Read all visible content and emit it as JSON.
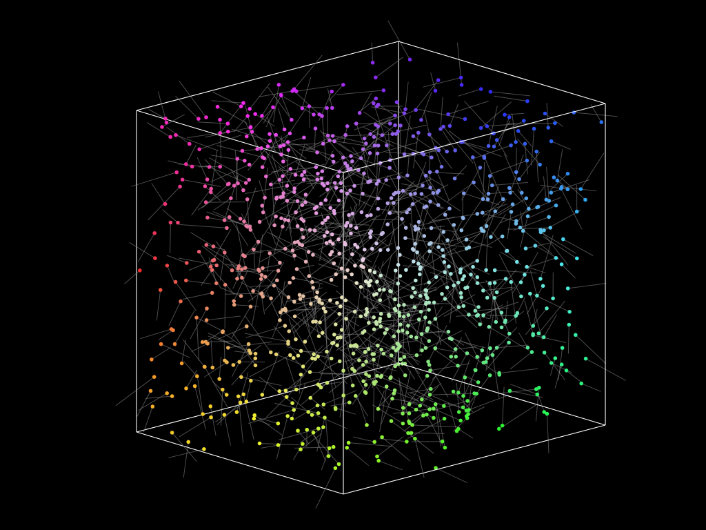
{
  "scene": {
    "background_color": "#000000",
    "cube_edge_color": "#ffffff",
    "stick_color": "#8a8a8a",
    "point_count": 1000,
    "color_legend": [
      {
        "region": "top-left",
        "color": "#b040e0"
      },
      {
        "region": "top",
        "color": "#3a3ad8"
      },
      {
        "region": "top-right",
        "color": "#40c0e0"
      },
      {
        "region": "left",
        "color": "#e03070"
      },
      {
        "region": "center",
        "color": "#f0f0f0"
      },
      {
        "region": "right",
        "color": "#40e0a0"
      },
      {
        "region": "bottom-left",
        "color": "#e05020"
      },
      {
        "region": "bottom",
        "color": "#f0d040"
      },
      {
        "region": "bottom-right",
        "color": "#50e050"
      }
    ]
  }
}
